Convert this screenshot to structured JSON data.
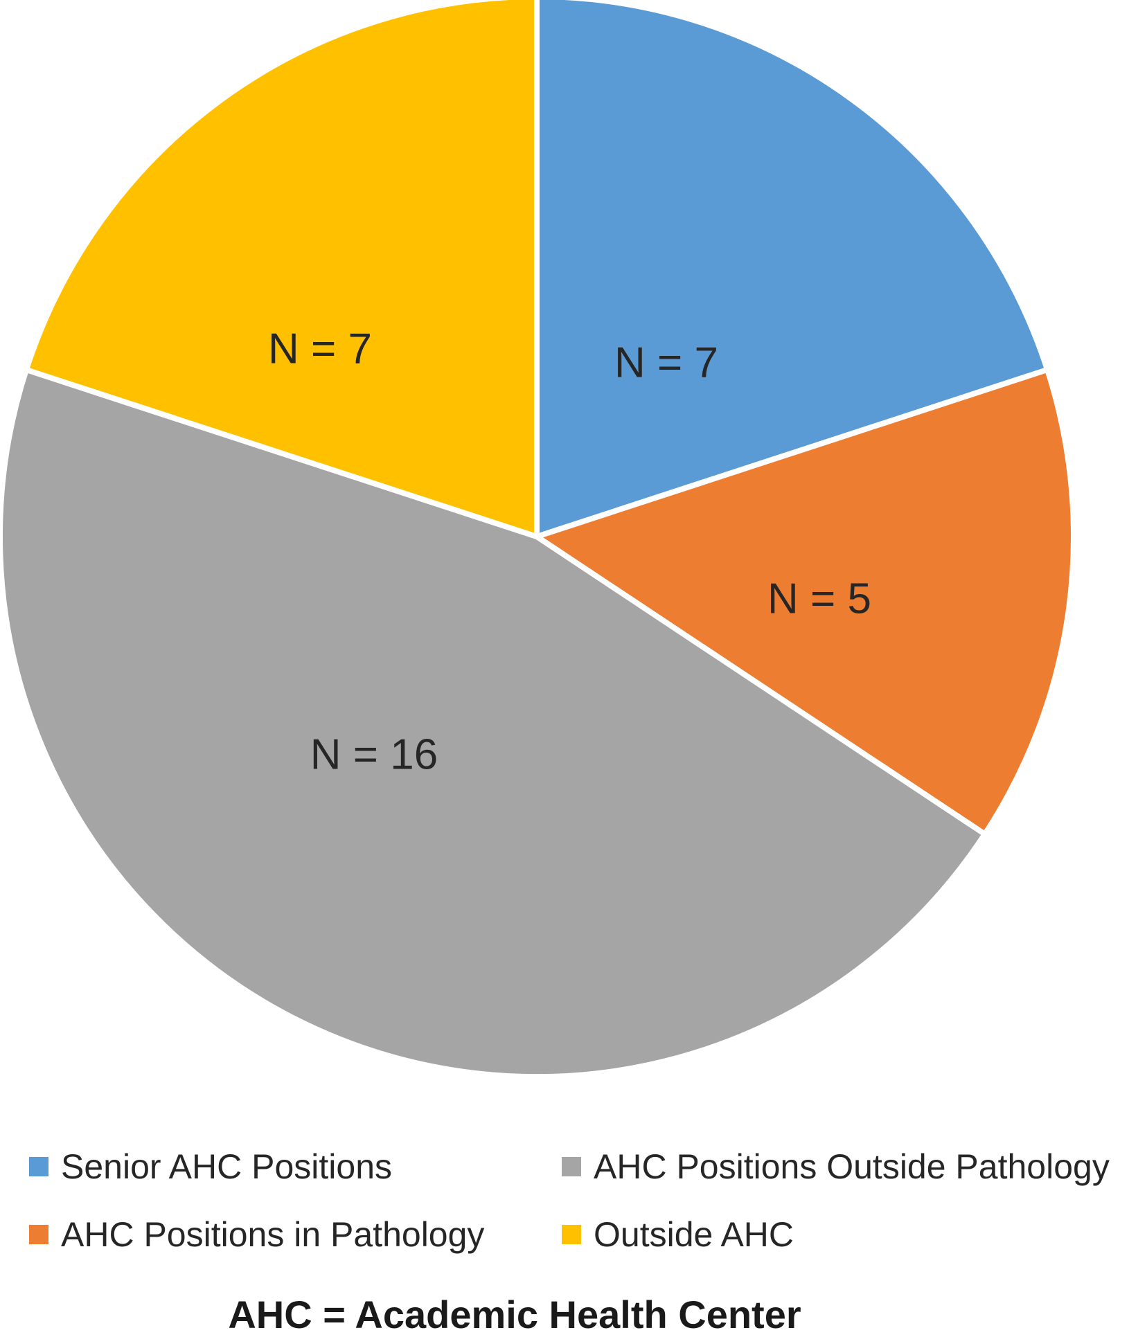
{
  "chart_data": {
    "type": "pie",
    "title": "",
    "total": 35,
    "direction": "clockwise",
    "start_angle_deg": 0,
    "legend_position": "bottom",
    "legend_order": [
      0,
      2,
      1,
      3
    ],
    "background_color": "#FFFFFF",
    "slice_border_color": "#FFFFFF",
    "label_color": "#262626",
    "footnote": "AHC = Academic Health Center",
    "slices": [
      {
        "label": "Senior AHC Positions",
        "value": 7,
        "annotation": "N = 7",
        "color": "#5B9BD5"
      },
      {
        "label": "AHC Positions in Pathology",
        "value": 5,
        "annotation": "N = 5",
        "color": "#ED7D31"
      },
      {
        "label": "AHC Positions Outside Pathology",
        "value": 16,
        "annotation": "N = 16",
        "color": "#A5A5A5"
      },
      {
        "label": "Outside AHC",
        "value": 7,
        "annotation": "N = 7",
        "color": "#FFC000"
      }
    ]
  }
}
